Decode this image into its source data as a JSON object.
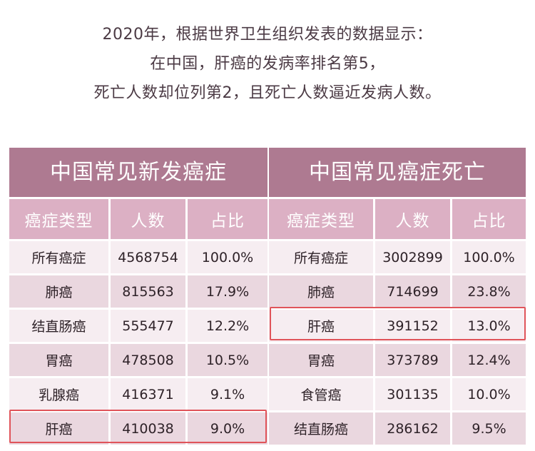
{
  "intro": {
    "line1": "2020年，根据世界卫生组织发表的数据显示：",
    "line2": "在中国，肝癌的发病率排名第5，",
    "line3": "死亡人数却位列第2，且死亡人数逼近发病人数。"
  },
  "incidence": {
    "title": "中国常见新发癌症",
    "headers": [
      "癌症类型",
      "人数",
      "占比"
    ],
    "rows": [
      [
        "所有癌症",
        "4568754",
        "100.0%"
      ],
      [
        "肺癌",
        "815563",
        "17.9%"
      ],
      [
        "结直肠癌",
        "555477",
        "12.2%"
      ],
      [
        "胃癌",
        "478508",
        "10.5%"
      ],
      [
        "乳腺癌",
        "416371",
        "9.1%"
      ],
      [
        "肝癌",
        "410038",
        "9.0%"
      ]
    ]
  },
  "mortality": {
    "title": "中国常见癌症死亡",
    "headers": [
      "癌症类型",
      "人数",
      "占比"
    ],
    "rows": [
      [
        "所有癌症",
        "3002899",
        "100.0%"
      ],
      [
        "肺癌",
        "714699",
        "23.8%"
      ],
      [
        "肝癌",
        "391152",
        "13.0%"
      ],
      [
        "胃癌",
        "373789",
        "12.4%"
      ],
      [
        "食管癌",
        "301135",
        "10.0%"
      ],
      [
        "结直肠癌",
        "286162",
        "9.5%"
      ]
    ]
  },
  "colors": {
    "title_bg": "#ae7a91",
    "header_bg": "#dcb0c4",
    "row_light": "#f6edf1",
    "row_dark": "#ead7df",
    "highlight": "#e0545a"
  }
}
